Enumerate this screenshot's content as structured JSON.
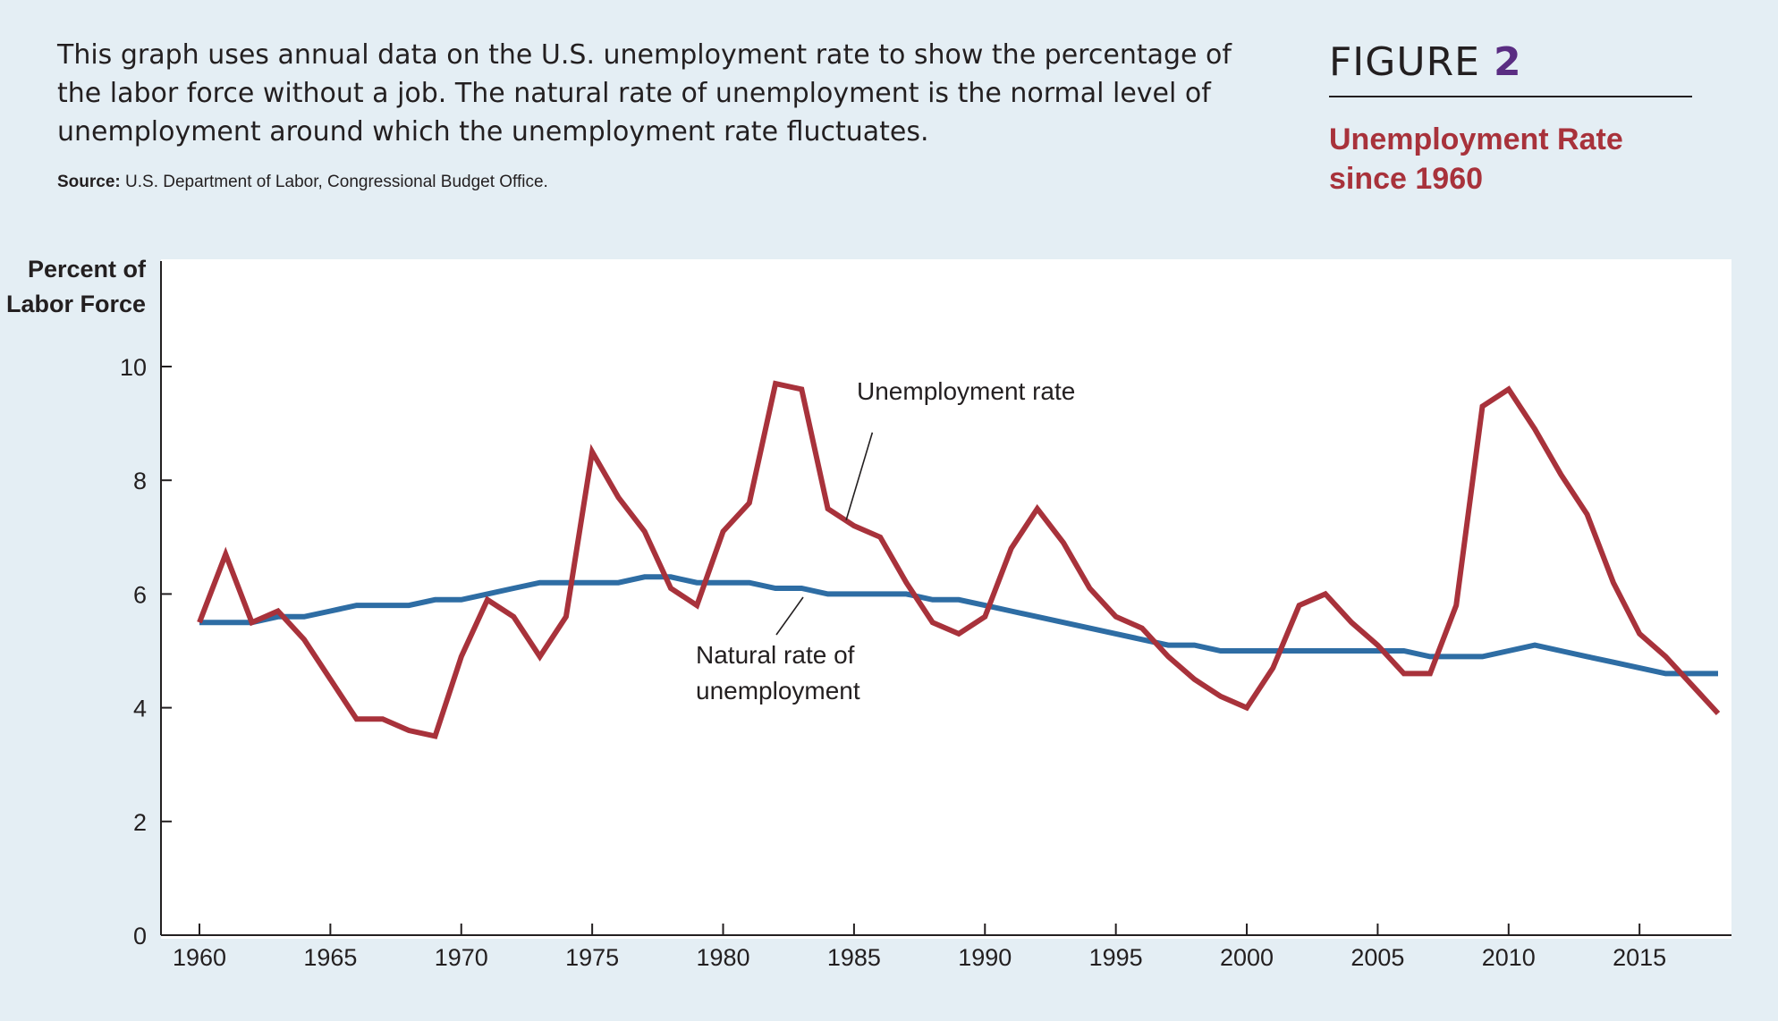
{
  "description": "This graph uses annual data on the U.S. unemployment rate to show the percentage of the labor force without a job. The natural rate of unemployment is the normal level of unemployment around which the unemployment rate fluctuates.",
  "source_label": "Source:",
  "source_text": "U.S. Department of Labor, Congressional Budget Office.",
  "figure_label": "FIGURE",
  "figure_number": "2",
  "figure_title": "Unemployment Rate since 1960",
  "colors": {
    "background": "#e4eef4",
    "unemployment_line": "#a8323b",
    "natural_line": "#2e6da4",
    "figure_number": "#5a2d82",
    "title": "#a8323b"
  },
  "chart_data": {
    "type": "line",
    "ylabel": "Percent of Labor Force",
    "ylabel_lines": [
      "Percent of",
      "Labor Force"
    ],
    "xlim": [
      1960,
      2018
    ],
    "ylim": [
      0,
      10
    ],
    "x_ticks": [
      1960,
      1965,
      1970,
      1975,
      1980,
      1985,
      1990,
      1995,
      2000,
      2005,
      2010,
      2015
    ],
    "y_ticks": [
      0,
      2,
      4,
      6,
      8,
      10
    ],
    "grid": false,
    "x": [
      1960,
      1961,
      1962,
      1963,
      1964,
      1965,
      1966,
      1967,
      1968,
      1969,
      1970,
      1971,
      1972,
      1973,
      1974,
      1975,
      1976,
      1977,
      1978,
      1979,
      1980,
      1981,
      1982,
      1983,
      1984,
      1985,
      1986,
      1987,
      1988,
      1989,
      1990,
      1991,
      1992,
      1993,
      1994,
      1995,
      1996,
      1997,
      1998,
      1999,
      2000,
      2001,
      2002,
      2003,
      2004,
      2005,
      2006,
      2007,
      2008,
      2009,
      2010,
      2011,
      2012,
      2013,
      2014,
      2015,
      2016,
      2017,
      2018
    ],
    "series": [
      {
        "name": "Unemployment rate",
        "values": [
          5.5,
          6.7,
          5.5,
          5.7,
          5.2,
          4.5,
          3.8,
          3.8,
          3.6,
          3.5,
          4.9,
          5.9,
          5.6,
          4.9,
          5.6,
          8.5,
          7.7,
          7.1,
          6.1,
          5.8,
          7.1,
          7.6,
          9.7,
          9.6,
          7.5,
          7.2,
          7.0,
          6.2,
          5.5,
          5.3,
          5.6,
          6.8,
          7.5,
          6.9,
          6.1,
          5.6,
          5.4,
          4.9,
          4.5,
          4.2,
          4.0,
          4.7,
          5.8,
          6.0,
          5.5,
          5.1,
          4.6,
          4.6,
          5.8,
          9.3,
          9.6,
          8.9,
          8.1,
          7.4,
          6.2,
          5.3,
          4.9,
          4.4,
          3.9
        ]
      },
      {
        "name": "Natural rate of unemployment",
        "name_lines": [
          "Natural rate of",
          "unemployment"
        ],
        "values": [
          5.5,
          5.5,
          5.5,
          5.6,
          5.6,
          5.7,
          5.8,
          5.8,
          5.8,
          5.9,
          5.9,
          6.0,
          6.1,
          6.2,
          6.2,
          6.2,
          6.2,
          6.3,
          6.3,
          6.2,
          6.2,
          6.2,
          6.1,
          6.1,
          6.0,
          6.0,
          6.0,
          6.0,
          5.9,
          5.9,
          5.8,
          5.7,
          5.6,
          5.5,
          5.4,
          5.3,
          5.2,
          5.1,
          5.1,
          5.0,
          5.0,
          5.0,
          5.0,
          5.0,
          5.0,
          5.0,
          5.0,
          4.9,
          4.9,
          4.9,
          5.0,
          5.1,
          5.0,
          4.9,
          4.8,
          4.7,
          4.6,
          4.6,
          4.6
        ]
      }
    ]
  }
}
